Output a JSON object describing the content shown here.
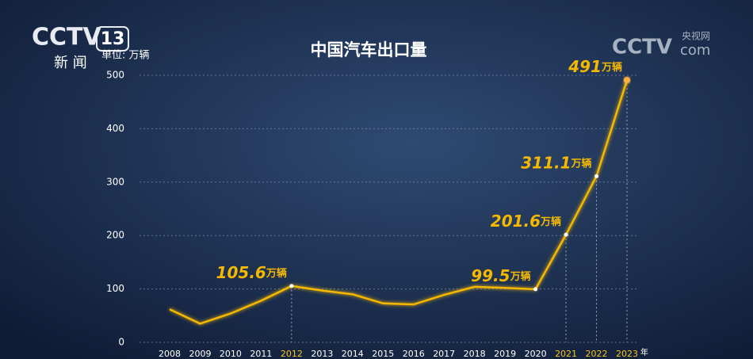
{
  "logo": {
    "brand": "CCTV",
    "number": "13",
    "name": "新 闻"
  },
  "watermark": {
    "brand": "CCTV",
    "domain": "com",
    "name": "央视网"
  },
  "chart_data": {
    "type": "line",
    "title": "中国汽车出口量",
    "unit_label": "单位: 万辆",
    "x_suffix": "年",
    "categories": [
      "2008",
      "2009",
      "2010",
      "2011",
      "2012",
      "2013",
      "2014",
      "2015",
      "2016",
      "2017",
      "2018",
      "2019",
      "2020",
      "2021",
      "2022",
      "2023"
    ],
    "series": [
      {
        "name": "汽车出口量",
        "color": "#f5b800",
        "values": [
          62,
          35,
          54,
          78,
          105.6,
          97,
          90,
          73,
          71,
          89,
          104,
          102,
          99.5,
          201.6,
          311.1,
          491
        ],
        "value_labels": [
          null,
          null,
          null,
          null,
          "105.6万辆",
          null,
          null,
          null,
          null,
          null,
          null,
          null,
          "99.5万辆",
          "201.6万辆",
          "311.1万辆",
          "491万辆"
        ]
      }
    ],
    "highlighted": [
      4,
      13,
      14,
      15
    ],
    "highlight_color": "#f5c518",
    "ylim": [
      0,
      500
    ],
    "yticks": [
      0,
      100,
      200,
      300,
      400,
      500
    ],
    "grid": true
  }
}
